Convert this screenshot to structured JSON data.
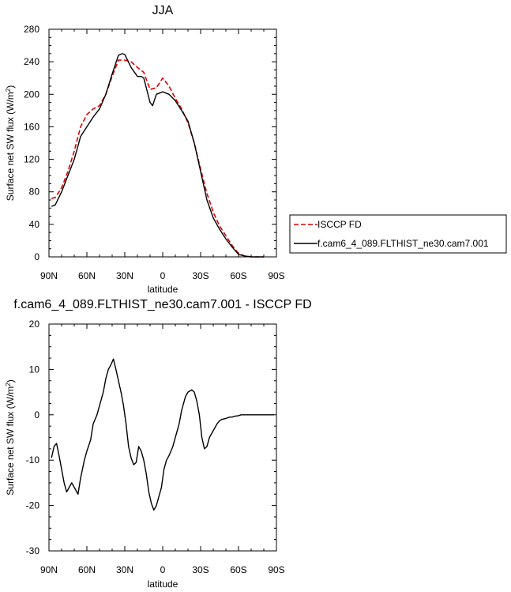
{
  "chart_data": [
    {
      "type": "line",
      "title": "JJA",
      "xlabel": "latitude",
      "ylabel": "Surface net SW flux (W/m²)",
      "xlim": [
        90,
        -90
      ],
      "ylim": [
        0,
        280
      ],
      "x_tick_values": [
        90,
        60,
        30,
        0,
        -30,
        -60,
        -90
      ],
      "x_tick_labels": [
        "90N",
        "60N",
        "30N",
        "0",
        "30S",
        "60S",
        "90S"
      ],
      "y_tick_values": [
        0,
        40,
        80,
        120,
        160,
        200,
        240,
        280
      ],
      "y_tick_labels": [
        "0",
        "40",
        "80",
        "120",
        "160",
        "200",
        "240",
        "280"
      ],
      "grid": false,
      "legend_position": "right",
      "series": [
        {
          "name": "ISCCP FD",
          "color": "#dd0000",
          "dash": "dashed",
          "x": [
            88,
            85,
            80,
            75,
            70,
            65,
            60,
            55,
            50,
            45,
            40,
            35,
            30,
            25,
            20,
            15,
            10,
            5,
            0,
            -5,
            -10,
            -15,
            -20,
            -25,
            -30,
            -35,
            -40,
            -45,
            -50,
            -55,
            -60,
            -65,
            -70,
            -75,
            -80
          ],
          "y": [
            72,
            73,
            85,
            105,
            130,
            160,
            175,
            182,
            186,
            200,
            222,
            242,
            242,
            240,
            233,
            227,
            206,
            208,
            220,
            210,
            195,
            182,
            165,
            140,
            108,
            78,
            55,
            38,
            26,
            14,
            4,
            1,
            0,
            0,
            0
          ]
        },
        {
          "name": "f.cam6_4_089.FLTHIST_ne30.cam7.001",
          "color": "#000000",
          "dash": "solid",
          "x": [
            88,
            85,
            80,
            75,
            70,
            65,
            60,
            55,
            50,
            45,
            40,
            35,
            32,
            30,
            25,
            20,
            17,
            15,
            10,
            8,
            5,
            0,
            -5,
            -10,
            -15,
            -20,
            -25,
            -30,
            -35,
            -40,
            -45,
            -50,
            -55,
            -60,
            -65,
            -70,
            -75,
            -80
          ],
          "y": [
            62,
            64,
            80,
            100,
            120,
            148,
            160,
            172,
            182,
            200,
            225,
            248,
            250,
            249,
            233,
            222,
            222,
            220,
            190,
            186,
            200,
            203,
            200,
            192,
            180,
            167,
            140,
            105,
            70,
            48,
            34,
            22,
            12,
            3,
            1,
            0,
            0,
            0
          ]
        }
      ]
    },
    {
      "type": "line",
      "title": "f.cam6_4_089.FLTHIST_ne30.cam7.001 - ISCCP FD",
      "xlabel": "latitude",
      "ylabel": "Surface net SW flux (W/m²)",
      "xlim": [
        90,
        -90
      ],
      "ylim": [
        -30,
        20
      ],
      "x_tick_values": [
        90,
        60,
        30,
        0,
        -30,
        -60,
        -90
      ],
      "x_tick_labels": [
        "90N",
        "60N",
        "30N",
        "0",
        "30S",
        "60S",
        "90S"
      ],
      "y_tick_values": [
        -30,
        -20,
        -10,
        0,
        10,
        20
      ],
      "y_tick_labels": [
        "-30",
        "-20",
        "-10",
        "0",
        "10",
        "20"
      ],
      "grid": false,
      "series": [
        {
          "color": "#000000",
          "dash": "solid",
          "x": [
            88,
            86,
            84,
            82,
            80,
            78,
            76,
            74,
            72,
            70,
            67,
            65,
            62,
            60,
            57,
            55,
            52,
            50,
            47,
            45,
            43,
            41,
            39,
            37,
            35,
            33,
            31,
            29,
            27,
            25,
            23,
            21,
            19,
            17,
            15,
            13,
            11,
            9,
            7,
            5,
            3,
            1,
            -1,
            -3,
            -5,
            -8,
            -10,
            -13,
            -15,
            -18,
            -20,
            -23,
            -25,
            -27,
            -29,
            -31,
            -33,
            -35,
            -37,
            -39,
            -41,
            -43,
            -45,
            -47,
            -50,
            -53,
            -55,
            -57,
            -60,
            -62,
            -65,
            -70,
            -75,
            -80,
            -85,
            -88
          ],
          "y": [
            -9.5,
            -7,
            -6.3,
            -9,
            -12,
            -15,
            -17,
            -16,
            -15,
            -16,
            -17.5,
            -14,
            -10,
            -8,
            -5.5,
            -2,
            0,
            2,
            5,
            8,
            10,
            11,
            12.3,
            10,
            7.5,
            5,
            2,
            -2,
            -7,
            -9.5,
            -11,
            -10.5,
            -7,
            -8,
            -10,
            -13,
            -17,
            -19.5,
            -21,
            -20,
            -18,
            -16,
            -12,
            -10,
            -9,
            -7,
            -5,
            -2,
            1,
            4,
            5,
            5.5,
            5,
            3,
            0,
            -5,
            -7.5,
            -7,
            -5,
            -4,
            -3,
            -2,
            -1.3,
            -1,
            -0.8,
            -0.5,
            -0.5,
            -0.3,
            -0.2,
            0,
            0,
            0,
            0,
            0,
            0,
            0
          ]
        }
      ]
    }
  ]
}
